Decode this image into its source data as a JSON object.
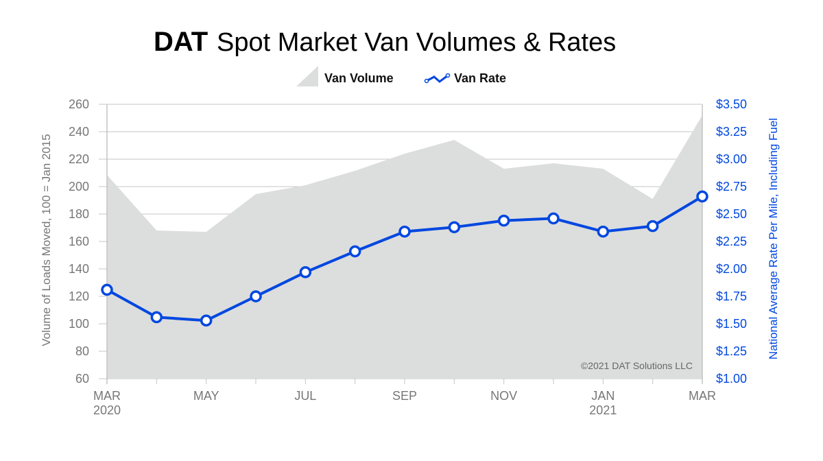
{
  "chart_data": {
    "type": "area+line",
    "title_brand": "DAT",
    "title": "Spot Market Van Volumes & Rates",
    "categories": [
      "Mar 2020",
      "Apr 2020",
      "May 2020",
      "Jun 2020",
      "Jul 2020",
      "Aug 2020",
      "Sep 2020",
      "Oct 2020",
      "Nov 2020",
      "Dec 2020",
      "Jan 2021",
      "Feb 2021",
      "Mar 2021"
    ],
    "x_tick_labels": [
      {
        "index": 0,
        "lines": [
          "MAR",
          "2020"
        ]
      },
      {
        "index": 2,
        "lines": [
          "MAY"
        ]
      },
      {
        "index": 4,
        "lines": [
          "JUL"
        ]
      },
      {
        "index": 6,
        "lines": [
          "SEP"
        ]
      },
      {
        "index": 8,
        "lines": [
          "NOV"
        ]
      },
      {
        "index": 10,
        "lines": [
          "JAN",
          "2021"
        ]
      },
      {
        "index": 12,
        "lines": [
          "MAR"
        ]
      }
    ],
    "series": [
      {
        "name": "Van Volume",
        "type": "area",
        "axis": "left",
        "color": "#dcdddd",
        "values": [
          208.5,
          168,
          167,
          194.5,
          201,
          211.5,
          224,
          234,
          213,
          217,
          213,
          191,
          252
        ]
      },
      {
        "name": "Van Rate",
        "type": "line",
        "axis": "right",
        "color": "#0047e0",
        "values": [
          1.81,
          1.56,
          1.53,
          1.75,
          1.97,
          2.16,
          2.34,
          2.38,
          2.44,
          2.46,
          2.34,
          2.39,
          2.66
        ]
      }
    ],
    "y_left": {
      "label": "Volume of Loads Moved, 100 = Jan 2015",
      "range": [
        60,
        260
      ],
      "ticks": [
        "60",
        "80",
        "100",
        "120",
        "140",
        "160",
        "180",
        "200",
        "220",
        "240",
        "260"
      ]
    },
    "y_right": {
      "label": "National Average Rate Per Mile, Including Fuel",
      "range": [
        1.0,
        3.5
      ],
      "ticks": [
        "$1.00",
        "$1.25",
        "$1.50",
        "$1.75",
        "$2.00",
        "$2.25",
        "$2.50",
        "$2.75",
        "$3.00",
        "$3.25",
        "$3.50"
      ]
    },
    "grid": true,
    "legend_position": "top-center",
    "annotation": "©2021 DAT Solutions LLC"
  }
}
